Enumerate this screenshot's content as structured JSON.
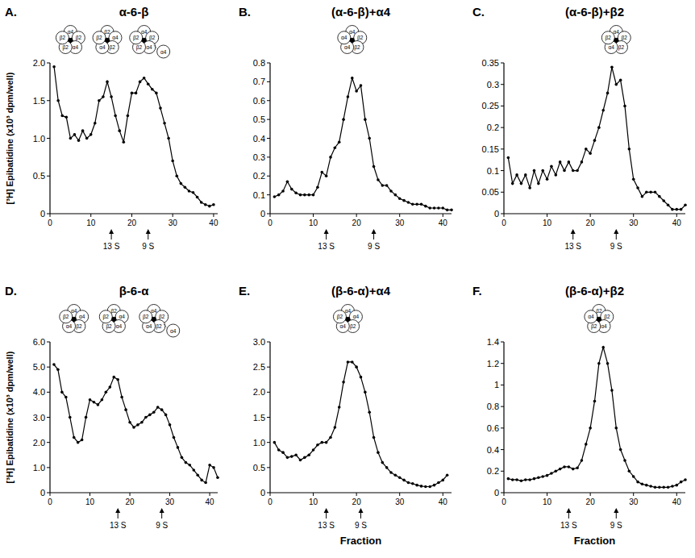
{
  "chart_data": [
    {
      "type": "line",
      "panel": "A.",
      "title": "α-6-β",
      "ylabel": "[³H] Epibatidine (x10³ dpm/well)",
      "color": "#000000",
      "marker": "circle",
      "x": [
        1,
        2,
        3,
        4,
        5,
        6,
        7,
        8,
        9,
        10,
        11,
        12,
        13,
        14,
        15,
        16,
        17,
        18,
        19,
        20,
        21,
        22,
        23,
        24,
        25,
        26,
        27,
        28,
        29,
        30,
        31,
        32,
        33,
        34,
        35,
        36,
        37,
        38,
        39,
        40
      ],
      "values": [
        1.95,
        1.5,
        1.3,
        1.28,
        1.0,
        1.05,
        0.97,
        1.1,
        1.0,
        1.05,
        1.2,
        1.5,
        1.55,
        1.75,
        1.55,
        1.3,
        1.1,
        0.95,
        1.3,
        1.6,
        1.6,
        1.75,
        1.8,
        1.72,
        1.65,
        1.6,
        1.4,
        1.2,
        1.0,
        0.7,
        0.5,
        0.4,
        0.35,
        0.3,
        0.28,
        0.22,
        0.15,
        0.12,
        0.1,
        0.12
      ],
      "xlim": [
        0,
        41
      ],
      "xticks": [
        0,
        10,
        20,
        30,
        40
      ],
      "ylim": [
        0,
        2
      ],
      "yticks": [
        0,
        0.5,
        {
          "value": 1,
          "label": "1.0"
        },
        1.5,
        {
          "value": 2,
          "label": "2.0"
        }
      ],
      "markers": [
        {
          "label": "13 S",
          "x": 15
        },
        {
          "label": "9 S",
          "x": 24
        }
      ],
      "diagrams": [
        {
          "x": 5,
          "subunits": [
            "α4",
            "β2",
            "α4",
            "β2",
            "β2"
          ]
        },
        {
          "x": 14,
          "subunits": [
            "β2",
            "α4",
            "β2",
            "α4",
            "β2"
          ]
        },
        {
          "x": 23,
          "subunits": [
            "α4",
            "β2",
            "α4",
            "β2",
            "β2"
          ],
          "extra": "α4"
        }
      ]
    },
    {
      "type": "line",
      "panel": "B.",
      "title": "(α-6-β)+α4",
      "color": "#000000",
      "marker": "circle",
      "x": [
        1,
        2,
        3,
        4,
        5,
        6,
        7,
        8,
        9,
        10,
        11,
        12,
        13,
        14,
        15,
        16,
        17,
        18,
        19,
        20,
        21,
        22,
        23,
        24,
        25,
        26,
        27,
        28,
        29,
        30,
        31,
        32,
        33,
        34,
        35,
        36,
        37,
        38,
        39,
        40,
        41,
        42
      ],
      "values": [
        0.09,
        0.1,
        0.12,
        0.17,
        0.13,
        0.11,
        0.1,
        0.1,
        0.1,
        0.1,
        0.14,
        0.22,
        0.2,
        0.3,
        0.35,
        0.38,
        0.5,
        0.62,
        0.72,
        0.65,
        0.68,
        0.5,
        0.4,
        0.25,
        0.18,
        0.15,
        0.15,
        0.12,
        0.1,
        0.08,
        0.07,
        0.06,
        0.05,
        0.05,
        0.05,
        0.04,
        0.03,
        0.03,
        0.03,
        0.03,
        0.02,
        0.02
      ],
      "xlim": [
        0,
        42
      ],
      "xticks": [
        0,
        10,
        20,
        30,
        40
      ],
      "ylim": [
        0,
        0.8
      ],
      "yticks": [
        0,
        0.1,
        0.2,
        0.3,
        0.4,
        0.5,
        0.6,
        0.7,
        0.8
      ],
      "markers": [
        {
          "label": "13 S",
          "x": 13
        },
        {
          "label": "9 S",
          "x": 24
        }
      ],
      "diagrams": [
        {
          "x": 19,
          "subunits": [
            "α4",
            "β2",
            "β2",
            "α4",
            "α4"
          ]
        }
      ]
    },
    {
      "type": "line",
      "panel": "C.",
      "title": "(α-6-β)+β2",
      "color": "#000000",
      "marker": "circle",
      "x": [
        1,
        2,
        3,
        4,
        5,
        6,
        7,
        8,
        9,
        10,
        11,
        12,
        13,
        14,
        15,
        16,
        17,
        18,
        19,
        20,
        21,
        22,
        23,
        24,
        25,
        26,
        27,
        28,
        29,
        30,
        31,
        32,
        33,
        34,
        35,
        36,
        37,
        38,
        39,
        40,
        41,
        42
      ],
      "values": [
        0.13,
        0.07,
        0.09,
        0.07,
        0.09,
        0.06,
        0.1,
        0.07,
        0.1,
        0.08,
        0.11,
        0.09,
        0.12,
        0.1,
        0.12,
        0.1,
        0.1,
        0.12,
        0.15,
        0.14,
        0.17,
        0.2,
        0.24,
        0.28,
        0.34,
        0.3,
        0.31,
        0.25,
        0.15,
        0.08,
        0.06,
        0.04,
        0.05,
        0.05,
        0.05,
        0.04,
        0.03,
        0.02,
        0.01,
        0.01,
        0.01,
        0.02
      ],
      "xlim": [
        0,
        42
      ],
      "xticks": [
        0,
        10,
        20,
        30,
        40
      ],
      "ylim": [
        0,
        0.35
      ],
      "yticks": [
        0,
        0.05,
        0.1,
        0.15,
        0.2,
        0.25,
        0.3,
        0.35
      ],
      "markers": [
        {
          "label": "13 S",
          "x": 16
        },
        {
          "label": "9 S",
          "x": 26
        }
      ],
      "diagrams": [
        {
          "x": 26,
          "subunits": [
            "α4",
            "β2",
            "β2",
            "α4",
            "β2"
          ]
        }
      ]
    },
    {
      "type": "line",
      "panel": "D.",
      "title": "β-6-α",
      "ylabel": "[³H] Epibatidine (x10³ dpm/well)",
      "color": "#000000",
      "marker": "circle",
      "x": [
        1,
        2,
        3,
        4,
        5,
        6,
        7,
        8,
        9,
        10,
        11,
        12,
        13,
        14,
        15,
        16,
        17,
        18,
        19,
        20,
        21,
        22,
        23,
        24,
        25,
        26,
        27,
        28,
        29,
        30,
        31,
        32,
        33,
        34,
        35,
        36,
        37,
        38,
        39,
        40,
        41,
        42
      ],
      "values": [
        5.1,
        4.9,
        4.0,
        3.8,
        3.0,
        2.2,
        2.0,
        2.1,
        3.0,
        3.7,
        3.6,
        3.5,
        3.7,
        4.0,
        4.2,
        4.6,
        4.5,
        3.8,
        3.3,
        2.8,
        2.6,
        2.7,
        2.8,
        3.0,
        3.1,
        3.2,
        3.4,
        3.3,
        3.1,
        2.7,
        2.2,
        1.8,
        1.4,
        1.2,
        1.1,
        0.9,
        0.7,
        0.5,
        0.4,
        1.1,
        1.0,
        0.6
      ],
      "xlim": [
        0,
        42
      ],
      "xticks": [
        0,
        10,
        20,
        30,
        40
      ],
      "ylim": [
        0,
        6
      ],
      "yticks": [
        0,
        {
          "value": 1,
          "label": "1.0"
        },
        {
          "value": 2,
          "label": "2.0"
        },
        {
          "value": 3,
          "label": "3.0"
        },
        {
          "value": 4,
          "label": "4.0"
        },
        {
          "value": 5,
          "label": "5.0"
        },
        {
          "value": 6,
          "label": "6.0"
        }
      ],
      "markers": [
        {
          "label": "13 S",
          "x": 17
        },
        {
          "label": "9 S",
          "x": 28
        }
      ],
      "diagrams": [
        {
          "x": 6,
          "subunits": [
            "α4",
            "α4",
            "β2",
            "α4",
            "β2"
          ]
        },
        {
          "x": 16,
          "subunits": [
            "β2",
            "α4",
            "α4",
            "β2",
            "β2"
          ]
        },
        {
          "x": 26,
          "subunits": [
            "α4",
            "β2",
            "β2",
            "α4",
            "β2"
          ],
          "extra": "α4"
        }
      ]
    },
    {
      "type": "line",
      "panel": "E.",
      "title": "(β-6-α)+α4",
      "color": "#000000",
      "marker": "circle",
      "x": [
        1,
        2,
        3,
        4,
        5,
        6,
        7,
        8,
        9,
        10,
        11,
        12,
        13,
        14,
        15,
        16,
        17,
        18,
        19,
        20,
        21,
        22,
        23,
        24,
        25,
        26,
        27,
        28,
        29,
        30,
        31,
        32,
        33,
        34,
        35,
        36,
        37,
        38,
        39,
        40,
        41
      ],
      "values": [
        1.0,
        0.85,
        0.8,
        0.7,
        0.72,
        0.75,
        0.65,
        0.7,
        0.75,
        0.85,
        0.95,
        1.0,
        1.0,
        1.1,
        1.3,
        1.7,
        2.2,
        2.6,
        2.6,
        2.5,
        2.3,
        2.0,
        1.6,
        1.1,
        0.8,
        0.6,
        0.5,
        0.4,
        0.35,
        0.3,
        0.25,
        0.2,
        0.18,
        0.15,
        0.13,
        0.12,
        0.12,
        0.15,
        0.2,
        0.25,
        0.35
      ],
      "xlim": [
        0,
        42
      ],
      "xticks": [
        0,
        10,
        20,
        30,
        40
      ],
      "ylim": [
        0,
        3
      ],
      "yticks": [
        0,
        0.5,
        {
          "value": 1,
          "label": "1.0"
        },
        1.5,
        {
          "value": 2,
          "label": "2.0"
        },
        2.5,
        {
          "value": 3,
          "label": "3.0"
        }
      ],
      "markers": [
        {
          "label": "13 S",
          "x": 13
        },
        {
          "label": "9 S",
          "x": 21
        }
      ],
      "xlabel": "Fraction",
      "diagrams": [
        {
          "x": 18,
          "subunits": [
            "α4",
            "α4",
            "β2",
            "α4",
            "β2"
          ]
        }
      ]
    },
    {
      "type": "line",
      "panel": "F.",
      "title": "(β-6-α)+β2",
      "color": "#000000",
      "marker": "circle",
      "x": [
        1,
        2,
        3,
        4,
        5,
        6,
        7,
        8,
        9,
        10,
        11,
        12,
        13,
        14,
        15,
        16,
        17,
        18,
        19,
        20,
        21,
        22,
        23,
        24,
        25,
        26,
        27,
        28,
        29,
        30,
        31,
        32,
        33,
        34,
        35,
        36,
        37,
        38,
        39,
        40,
        41,
        42
      ],
      "values": [
        0.13,
        0.12,
        0.12,
        0.11,
        0.12,
        0.12,
        0.13,
        0.14,
        0.15,
        0.16,
        0.18,
        0.2,
        0.22,
        0.24,
        0.24,
        0.22,
        0.23,
        0.3,
        0.45,
        0.6,
        0.85,
        1.2,
        1.35,
        1.2,
        0.95,
        0.6,
        0.4,
        0.3,
        0.2,
        0.15,
        0.1,
        0.08,
        0.07,
        0.06,
        0.05,
        0.05,
        0.05,
        0.05,
        0.06,
        0.07,
        0.1,
        0.12
      ],
      "xlim": [
        0,
        42
      ],
      "xticks": [
        0,
        10,
        20,
        30,
        40
      ],
      "ylim": [
        0,
        1.4
      ],
      "yticks": [
        0,
        0.2,
        0.4,
        0.6,
        0.8,
        1,
        1.2,
        1.4
      ],
      "markers": [
        {
          "label": "13 S",
          "x": 15
        },
        {
          "label": "9 S",
          "x": 26
        }
      ],
      "xlabel": "Fraction",
      "diagrams": [
        {
          "x": 22,
          "subunits": [
            "β2",
            "β2",
            "α4",
            "β2",
            "α4"
          ]
        }
      ]
    }
  ]
}
